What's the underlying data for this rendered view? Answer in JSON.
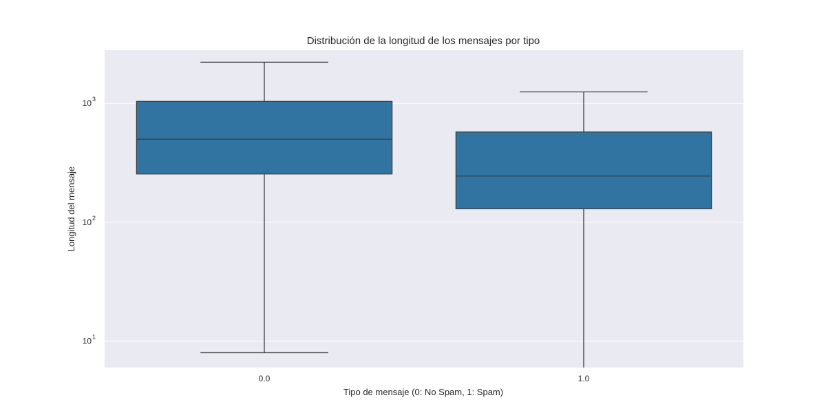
{
  "chart_data": {
    "type": "box",
    "title": "Distribución de la longitud de los mensajes por tipo",
    "xlabel": "Tipo de mensaje (0: No Spam, 1: Spam)",
    "ylabel": "Longitud del mensaje",
    "y_scale": "log",
    "ylim": [
      6,
      2800
    ],
    "y_ticks": [
      {
        "value": 10,
        "base": "10",
        "exp": "1"
      },
      {
        "value": 100,
        "base": "10",
        "exp": "2"
      },
      {
        "value": 1000,
        "base": "10",
        "exp": "3"
      }
    ],
    "grid": true,
    "categories": [
      "0.0",
      "1.0"
    ],
    "boxes": [
      {
        "category": "0.0",
        "whisker_low": 8,
        "q1": 255,
        "median": 500,
        "q3": 1040,
        "whisker_high": 2220
      },
      {
        "category": "1.0",
        "whisker_low": 6,
        "q1": 130,
        "median": 245,
        "q3": 575,
        "whisker_high": 1250
      }
    ],
    "colors": {
      "box_fill": "#3274a1",
      "box_edge": "#3d3d3d",
      "plot_background": "#eaeaf2",
      "grid": "#ffffff"
    }
  }
}
